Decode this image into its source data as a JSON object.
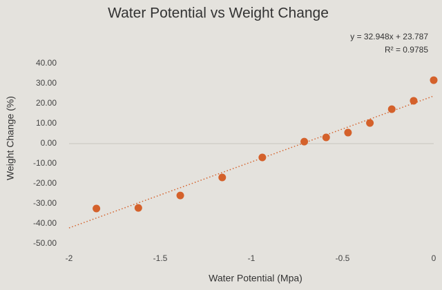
{
  "chart_data": {
    "type": "scatter",
    "title": "Water Potential vs Weight Change",
    "x_label": "Water Potential (Mpa)",
    "y_label": "Weight Change (%)",
    "x": [
      -1.85,
      -1.62,
      -1.39,
      -1.16,
      -0.94,
      -0.71,
      -0.59,
      -0.47,
      -0.35,
      -0.23,
      -0.11,
      0
    ],
    "values": [
      -32.4,
      -32.1,
      -25.9,
      -16.9,
      -6.9,
      1.0,
      3.1,
      5.5,
      10.3,
      17.2,
      21.4,
      31.7
    ],
    "color": "#d4612b",
    "xlim": [
      -2,
      0
    ],
    "xticks": [
      -2,
      -1.5,
      -1,
      -0.5,
      0
    ],
    "ylim": [
      -50,
      40
    ],
    "yticks": [
      {
        "value": -50,
        "label": "-50.00"
      },
      {
        "value": -40,
        "label": "-40.00"
      },
      {
        "value": -30,
        "label": "-30.00"
      },
      {
        "value": -20,
        "label": "-20.00"
      },
      {
        "value": -10,
        "label": "-10.00"
      },
      {
        "value": 0,
        "label": "0.00"
      },
      {
        "value": 10,
        "label": "10.00"
      },
      {
        "value": 20,
        "label": "20.00"
      },
      {
        "value": 30,
        "label": "30.00"
      },
      {
        "value": 40,
        "label": "40.00"
      }
    ],
    "trendline": {
      "slope": 32.948,
      "intercept": 23.787,
      "label": "y = 32.948x + 23.787",
      "r2_label": "R² = 0.9785"
    }
  }
}
